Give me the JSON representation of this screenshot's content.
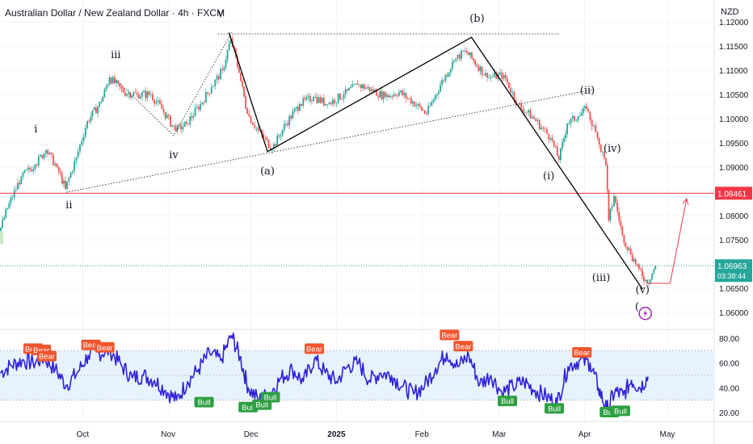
{
  "header": {
    "title": "Australian Dollar / New Zealand Dollar · 4h · FXCM",
    "currency": "NZD"
  },
  "colors": {
    "price_line": "#26a69a",
    "bear_candle": "#ef5350",
    "bull_candle": "#26a69a",
    "wave_line": "#000000",
    "level_line": "#f23645",
    "rsi_line": "#2f22d6",
    "rsi_band": "#e8f2fd",
    "bear_label": "#f2542d",
    "bull_label": "#2ea043",
    "projection": "#f23645"
  },
  "chart_data": {
    "type": "candlestick",
    "price_axis": {
      "ticks": [
        "1.12000",
        "1.11500",
        "1.11000",
        "1.10500",
        "1.10000",
        "1.09500",
        "1.09000",
        "1.08500",
        "1.08000",
        "1.07500",
        "1.07000",
        "1.06500",
        "1.06000"
      ],
      "range": [
        1.0565,
        1.1245
      ]
    },
    "time_axis": {
      "ticks": [
        "Oct",
        "Nov",
        "Dec",
        "2025",
        "Feb",
        "Mar",
        "Apr",
        "May"
      ],
      "range": [
        "2024-09-01",
        "2025-05-18"
      ]
    },
    "price_path": [
      [
        "2024-09-01",
        1.0765
      ],
      [
        "2024-09-04",
        1.0815
      ],
      [
        "2024-09-09",
        1.088
      ],
      [
        "2024-09-14",
        1.0905
      ],
      [
        "2024-09-18",
        1.0935
      ],
      [
        "2024-09-22",
        1.09
      ],
      [
        "2024-09-25",
        1.0855
      ],
      [
        "2024-09-29",
        1.092
      ],
      [
        "2024-10-03",
        1.0995
      ],
      [
        "2024-10-08",
        1.1035
      ],
      [
        "2024-10-11",
        1.1085
      ],
      [
        "2024-10-16",
        1.1055
      ],
      [
        "2024-10-21",
        1.105
      ],
      [
        "2024-10-26",
        1.105
      ],
      [
        "2024-10-30",
        1.102
      ],
      [
        "2024-11-04",
        1.0975
      ],
      [
        "2024-11-08",
        1.099
      ],
      [
        "2024-11-13",
        1.103
      ],
      [
        "2024-11-17",
        1.1065
      ],
      [
        "2024-11-21",
        1.11
      ],
      [
        "2024-11-24",
        1.1165
      ],
      [
        "2024-11-27",
        1.1095
      ],
      [
        "2024-11-30",
        1.101
      ],
      [
        "2024-12-04",
        1.0975
      ],
      [
        "2024-12-09",
        1.0938
      ],
      [
        "2024-12-14",
        1.099
      ],
      [
        "2024-12-19",
        1.103
      ],
      [
        "2024-12-24",
        1.1045
      ],
      [
        "2024-12-29",
        1.103
      ],
      [
        "2025-01-04",
        1.105
      ],
      [
        "2025-01-09",
        1.107
      ],
      [
        "2025-01-14",
        1.106
      ],
      [
        "2025-01-19",
        1.1045
      ],
      [
        "2025-01-24",
        1.1055
      ],
      [
        "2025-01-29",
        1.1035
      ],
      [
        "2025-02-03",
        1.101
      ],
      [
        "2025-02-08",
        1.107
      ],
      [
        "2025-02-13",
        1.112
      ],
      [
        "2025-02-17",
        1.114
      ],
      [
        "2025-02-20",
        1.112
      ],
      [
        "2025-02-25",
        1.1085
      ],
      [
        "2025-03-03",
        1.109
      ],
      [
        "2025-03-08",
        1.103
      ],
      [
        "2025-03-14",
        1.1
      ],
      [
        "2025-03-20",
        1.096
      ],
      [
        "2025-03-23",
        1.0915
      ],
      [
        "2025-03-26",
        1.099
      ],
      [
        "2025-03-30",
        1.1005
      ],
      [
        "2025-04-02",
        1.102
      ],
      [
        "2025-04-06",
        1.096
      ],
      [
        "2025-04-09",
        1.0905
      ],
      [
        "2025-04-10",
        1.079
      ],
      [
        "2025-04-12",
        1.084
      ],
      [
        "2025-04-15",
        1.076
      ],
      [
        "2025-04-18",
        1.072
      ],
      [
        "2025-04-21",
        1.069
      ],
      [
        "2025-04-24",
        1.066
      ],
      [
        "2025-04-27",
        1.0696
      ]
    ],
    "horizontal_level": {
      "value": 1.08461,
      "label": "1.08461"
    },
    "current_price": {
      "value": 1.06963,
      "label": "1.06963",
      "countdown": "03:38:44"
    },
    "wave_lines": [
      [
        [
          "2024-11-23",
          1.1178
        ],
        [
          "2024-12-07",
          1.0932
        ],
        [
          "2025-02-19",
          1.1168
        ],
        [
          "2025-04-22",
          1.0648
        ]
      ]
    ],
    "dotted_lines": [
      {
        "points": [
          [
            "2024-11-19",
            1.1175
          ],
          [
            "2025-03-23",
            1.1175
          ]
        ]
      },
      {
        "points": [
          [
            "2024-09-25",
            1.0848
          ],
          [
            "2025-04-04",
            1.106
          ]
        ]
      },
      {
        "points": [
          [
            "2024-10-13",
            1.108
          ],
          [
            "2024-11-03",
            1.0965
          ],
          [
            "2024-11-24",
            1.1178
          ]
        ]
      }
    ],
    "projection": [
      [
        "2025-04-24",
        1.066
      ],
      [
        "2025-05-02",
        1.066
      ],
      [
        "2025-05-08",
        1.0835
      ]
    ],
    "wave_labels": [
      {
        "text": "i",
        "date": "2024-09-14",
        "price": 1.0972
      },
      {
        "text": "ii",
        "date": "2024-09-26",
        "price": 1.0815
      },
      {
        "text": "iii",
        "date": "2024-10-13",
        "price": 1.1125
      },
      {
        "text": "iv",
        "date": "2024-11-03",
        "price": 1.0918
      },
      {
        "text": "v",
        "date": "2024-11-20",
        "price": 1.121
      },
      {
        "text": "(a)",
        "date": "2024-12-07",
        "price": 1.0885
      },
      {
        "text": "(b)",
        "date": "2025-02-21",
        "price": 1.12
      },
      {
        "text": "(ii)",
        "date": "2025-04-02",
        "price": 1.1052
      },
      {
        "text": "(i)",
        "date": "2025-03-19",
        "price": 1.0875
      },
      {
        "text": "(iv)",
        "date": "2025-04-11",
        "price": 1.0932
      },
      {
        "text": "(iii)",
        "date": "2025-04-07",
        "price": 1.0665
      },
      {
        "text": "(v)",
        "date": "2025-04-22",
        "price": 1.064
      },
      {
        "text": "(",
        "date": "2025-04-20",
        "price": 1.0605
      }
    ],
    "rsi": {
      "axis_ticks": [
        "80.00",
        "60.00",
        "40.00",
        "20.00"
      ],
      "range": [
        13,
        87
      ],
      "band": [
        30,
        70
      ],
      "series": [
        [
          "2024-09-01",
          52
        ],
        [
          "2024-09-05",
          58
        ],
        [
          "2024-09-09",
          62
        ],
        [
          "2024-09-13",
          60
        ],
        [
          "2024-09-17",
          64
        ],
        [
          "2024-09-21",
          55
        ],
        [
          "2024-09-25",
          42
        ],
        [
          "2024-09-29",
          52
        ],
        [
          "2024-10-03",
          66
        ],
        [
          "2024-10-07",
          68
        ],
        [
          "2024-10-11",
          70
        ],
        [
          "2024-10-15",
          58
        ],
        [
          "2024-10-19",
          48
        ],
        [
          "2024-10-23",
          50
        ],
        [
          "2024-10-27",
          46
        ],
        [
          "2024-10-31",
          38
        ],
        [
          "2024-11-04",
          30
        ],
        [
          "2024-11-08",
          45
        ],
        [
          "2024-11-12",
          55
        ],
        [
          "2024-11-16",
          68
        ],
        [
          "2024-11-20",
          62
        ],
        [
          "2024-11-24",
          82
        ],
        [
          "2024-11-27",
          65
        ],
        [
          "2024-11-30",
          40
        ],
        [
          "2024-12-04",
          30
        ],
        [
          "2024-12-08",
          36
        ],
        [
          "2024-12-12",
          48
        ],
        [
          "2024-12-16",
          55
        ],
        [
          "2024-12-20",
          45
        ],
        [
          "2024-12-24",
          63
        ],
        [
          "2024-12-28",
          52
        ],
        [
          "2025-01-01",
          45
        ],
        [
          "2025-01-05",
          57
        ],
        [
          "2025-01-09",
          60
        ],
        [
          "2025-01-13",
          46
        ],
        [
          "2025-01-17",
          52
        ],
        [
          "2025-01-21",
          50
        ],
        [
          "2025-01-25",
          41
        ],
        [
          "2025-01-29",
          35
        ],
        [
          "2025-02-02",
          42
        ],
        [
          "2025-02-06",
          56
        ],
        [
          "2025-02-10",
          68
        ],
        [
          "2025-02-14",
          57
        ],
        [
          "2025-02-18",
          66
        ],
        [
          "2025-02-22",
          43
        ],
        [
          "2025-02-26",
          50
        ],
        [
          "2025-03-02",
          36
        ],
        [
          "2025-03-06",
          41
        ],
        [
          "2025-03-10",
          45
        ],
        [
          "2025-03-14",
          38
        ],
        [
          "2025-03-18",
          33
        ],
        [
          "2025-03-22",
          28
        ],
        [
          "2025-03-26",
          57
        ],
        [
          "2025-03-30",
          62
        ],
        [
          "2025-04-03",
          60
        ],
        [
          "2025-04-06",
          40
        ],
        [
          "2025-04-09",
          22
        ],
        [
          "2025-04-12",
          37
        ],
        [
          "2025-04-15",
          34
        ],
        [
          "2025-04-18",
          46
        ],
        [
          "2025-04-21",
          40
        ],
        [
          "2025-04-24",
          49
        ]
      ],
      "labels": [
        {
          "kind": "bear",
          "text": "Bear",
          "date": "2024-09-13",
          "value": 66
        },
        {
          "kind": "bear",
          "text": "Bear",
          "date": "2024-09-16",
          "value": 65
        },
        {
          "kind": "bear",
          "text": "Bear",
          "date": "2024-09-18",
          "value": 60
        },
        {
          "kind": "bear",
          "text": "Bear",
          "date": "2024-10-04",
          "value": 69
        },
        {
          "kind": "bear",
          "text": "Bear",
          "date": "2024-10-09",
          "value": 67
        },
        {
          "kind": "bear",
          "text": "Bear",
          "date": "2024-12-24",
          "value": 66
        },
        {
          "kind": "bear",
          "text": "Bear",
          "date": "2025-02-11",
          "value": 77
        },
        {
          "kind": "bear",
          "text": "Bear",
          "date": "2025-02-16",
          "value": 68
        },
        {
          "kind": "bear",
          "text": "Bear",
          "date": "2025-03-31",
          "value": 63
        },
        {
          "kind": "bull",
          "text": "Bull",
          "date": "2024-11-14",
          "value": 34
        },
        {
          "kind": "bull",
          "text": "Bull",
          "date": "2024-11-30",
          "value": 30
        },
        {
          "kind": "bull",
          "text": "Bull",
          "date": "2024-12-05",
          "value": 32
        },
        {
          "kind": "bull",
          "text": "Bull",
          "date": "2024-12-08",
          "value": 38
        },
        {
          "kind": "bull",
          "text": "Bull",
          "date": "2025-03-04",
          "value": 35
        },
        {
          "kind": "bull",
          "text": "Bull",
          "date": "2025-03-21",
          "value": 29
        },
        {
          "kind": "bull",
          "text": "Bull",
          "date": "2025-04-10",
          "value": 26
        },
        {
          "kind": "bull",
          "text": "Bull",
          "date": "2025-04-14",
          "value": 27
        }
      ]
    },
    "icons": [
      {
        "name": "lightning-icon",
        "date": "2025-04-23",
        "price": 1.0598
      }
    ]
  }
}
